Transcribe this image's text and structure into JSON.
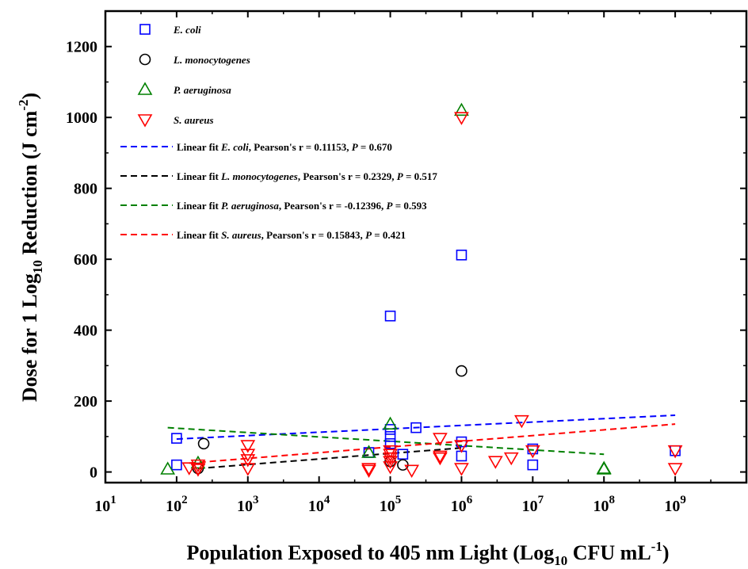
{
  "chart_data": {
    "type": "scatter",
    "x_scale": "log",
    "xlim": [
      10,
      10000000000
    ],
    "ylim": [
      -30,
      1300
    ],
    "y_ticks": [
      0,
      200,
      400,
      600,
      800,
      1000,
      1200
    ],
    "x_tick_exponents": [
      1,
      2,
      3,
      4,
      5,
      6,
      7,
      8,
      9
    ],
    "x_tick_base": "10",
    "xlabel": {
      "main": "Population Exposed to 405 nm Light (Log",
      "sub": "10",
      "mid": " CFU mL",
      "sup": "-1",
      "end": ")"
    },
    "ylabel": {
      "main": "Dose for 1 Log",
      "sub": "10",
      "mid": " Reduction (J cm",
      "sup": "-2",
      "end": ")"
    },
    "legend_position": "top-left",
    "series": [
      {
        "name": "E. coli",
        "marker": "square",
        "color": "#0000ff",
        "points": [
          [
            100,
            95
          ],
          [
            100,
            20
          ],
          [
            50000,
            55
          ],
          [
            100000,
            440
          ],
          [
            100000,
            120
          ],
          [
            100000,
            100
          ],
          [
            100000,
            80
          ],
          [
            150000,
            50
          ],
          [
            230000,
            125
          ],
          [
            1000000,
            612
          ],
          [
            1000000,
            85
          ],
          [
            1000000,
            45
          ],
          [
            10000000,
            20
          ],
          [
            10000000,
            65
          ],
          [
            1000000000,
            60
          ]
        ]
      },
      {
        "name": "L. monocytogenes",
        "marker": "circle",
        "color": "#000000",
        "points": [
          [
            200,
            10
          ],
          [
            240,
            80
          ],
          [
            100000,
            30
          ],
          [
            150000,
            20
          ],
          [
            1000000,
            285
          ]
        ]
      },
      {
        "name": "P. aeruginosa",
        "marker": "triangle-up",
        "color": "#008000",
        "points": [
          [
            75,
            8
          ],
          [
            200,
            25
          ],
          [
            50000,
            55
          ],
          [
            100000,
            135
          ],
          [
            1000000,
            1020
          ],
          [
            100000000,
            10
          ],
          [
            100000000,
            8
          ]
        ]
      },
      {
        "name": "S. aureus",
        "marker": "triangle-down",
        "color": "#ff0000",
        "points": [
          [
            150,
            12
          ],
          [
            200,
            10
          ],
          [
            200,
            8
          ],
          [
            200,
            20
          ],
          [
            1000,
            75
          ],
          [
            1000,
            50
          ],
          [
            1000,
            35
          ],
          [
            1000,
            10
          ],
          [
            50000,
            10
          ],
          [
            50000,
            5
          ],
          [
            100000,
            60
          ],
          [
            100000,
            50
          ],
          [
            100000,
            40
          ],
          [
            100000,
            30
          ],
          [
            100000,
            15
          ],
          [
            200000,
            5
          ],
          [
            500000,
            95
          ],
          [
            500000,
            45
          ],
          [
            500000,
            40
          ],
          [
            1000000,
            1000
          ],
          [
            1000000,
            75
          ],
          [
            1000000,
            10
          ],
          [
            3000000,
            30
          ],
          [
            5000000,
            40
          ],
          [
            7000000,
            145
          ],
          [
            10000000,
            60
          ],
          [
            1000000000,
            60
          ],
          [
            1000000000,
            10
          ]
        ]
      }
    ],
    "fit_lines": [
      {
        "color": "#0000ff",
        "label_prefix": "Linear fit ",
        "species": "E. coli",
        "label_suffix": ", Pearson's r = 0.11153, ",
        "p_label": "P",
        "p_value": " = 0.670",
        "x": [
          100,
          1000000000
        ],
        "y": [
          93,
          160
        ]
      },
      {
        "color": "#000000",
        "label_prefix": "Linear fit ",
        "species": "L. monocytogenes",
        "label_suffix": ", Pearson's r = 0.2329, ",
        "p_label": "P",
        "p_value": " = 0.517",
        "x": [
          200,
          1000000
        ],
        "y": [
          10,
          68
        ]
      },
      {
        "color": "#008000",
        "label_prefix": "Linear fit ",
        "species": "P. aeruginosa",
        "label_suffix": ", Pearson's r = -0.12396, ",
        "p_label": "P",
        "p_value": " = 0.593",
        "x": [
          75,
          100000000
        ],
        "y": [
          125,
          50
        ]
      },
      {
        "color": "#ff0000",
        "label_prefix": "Linear fit ",
        "species": "S. aureus",
        "label_suffix": ", Pearson's r = 0.15843, ",
        "p_label": "P",
        "p_value": " = 0.421",
        "x": [
          150,
          1000000000
        ],
        "y": [
          25,
          135
        ]
      }
    ]
  }
}
